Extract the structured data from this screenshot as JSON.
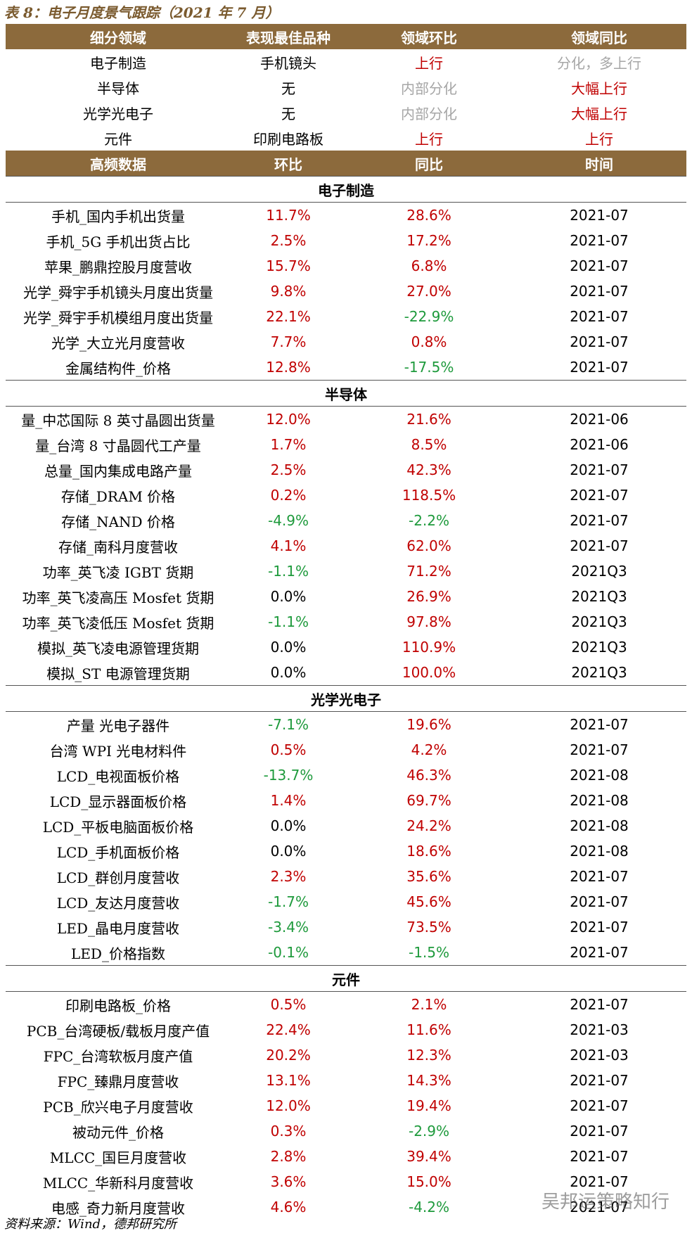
{
  "title": "表 8：电子月度景气跟踪（2021 年 7 月）",
  "summary": {
    "header": [
      "细分领域",
      "表现最佳品种",
      "领域环比",
      "领域同比"
    ],
    "rows": [
      {
        "cells": [
          "电子制造",
          "手机镜头",
          "上行",
          "分化，多上行"
        ],
        "colors": [
          "#000000",
          "#000000",
          "#c00000",
          "#a6a6a6"
        ]
      },
      {
        "cells": [
          "半导体",
          "无",
          "内部分化",
          "大幅上行"
        ],
        "colors": [
          "#000000",
          "#000000",
          "#a6a6a6",
          "#c00000"
        ]
      },
      {
        "cells": [
          "光学光电子",
          "无",
          "内部分化",
          "大幅上行"
        ],
        "colors": [
          "#000000",
          "#000000",
          "#a6a6a6",
          "#c00000"
        ]
      },
      {
        "cells": [
          "元件",
          "印刷电路板",
          "上行",
          "上行"
        ],
        "colors": [
          "#000000",
          "#000000",
          "#c00000",
          "#c00000"
        ]
      }
    ]
  },
  "detail": {
    "header": [
      "高频数据",
      "环比",
      "同比",
      "时间"
    ],
    "sections": [
      {
        "name": "电子制造",
        "rows": [
          [
            "手机_国内手机出货量",
            "11.7%",
            "28.6%",
            "2021-07"
          ],
          [
            "手机_5G 手机出货占比",
            "2.5%",
            "17.2%",
            "2021-07"
          ],
          [
            "苹果_鹏鼎控股月度营收",
            "15.7%",
            "6.8%",
            "2021-07"
          ],
          [
            "光学_舜宇手机镜头月度出货量",
            "9.8%",
            "27.0%",
            "2021-07"
          ],
          [
            "光学_舜宇手机模组月度出货量",
            "22.1%",
            "-22.9%",
            "2021-07"
          ],
          [
            "光学_大立光月度营收",
            "7.7%",
            "0.8%",
            "2021-07"
          ],
          [
            "金属结构件_价格",
            "12.8%",
            "-17.5%",
            "2021-07"
          ]
        ]
      },
      {
        "name": "半导体",
        "rows": [
          [
            "量_中芯国际 8 英寸晶圆出货量",
            "12.0%",
            "21.6%",
            "2021-06"
          ],
          [
            "量_台湾 8 寸晶圆代工产量",
            "1.7%",
            "8.5%",
            "2021-06"
          ],
          [
            "总量_国内集成电路产量",
            "2.5%",
            "42.3%",
            "2021-07"
          ],
          [
            "存储_DRAM 价格",
            "0.2%",
            "118.5%",
            "2021-07"
          ],
          [
            "存储_NAND 价格",
            "-4.9%",
            "-2.2%",
            "2021-07"
          ],
          [
            "存储_南科月度营收",
            "4.1%",
            "62.0%",
            "2021-07"
          ],
          [
            "功率_英飞凌 IGBT 货期",
            "-1.1%",
            "71.2%",
            "2021Q3"
          ],
          [
            "功率_英飞凌高压 Mosfet 货期",
            "0.0%",
            "26.9%",
            "2021Q3"
          ],
          [
            "功率_英飞凌低压 Mosfet 货期",
            "-1.1%",
            "97.8%",
            "2021Q3"
          ],
          [
            "模拟_英飞凌电源管理货期",
            "0.0%",
            "110.9%",
            "2021Q3"
          ],
          [
            "模拟_ST 电源管理货期",
            "0.0%",
            "100.0%",
            "2021Q3"
          ]
        ]
      },
      {
        "name": "光学光电子",
        "rows": [
          [
            "产量 光电子器件",
            "-7.1%",
            "19.6%",
            "2021-07"
          ],
          [
            "台湾 WPI 光电材料件",
            "0.5%",
            "4.2%",
            "2021-07"
          ],
          [
            "LCD_电视面板价格",
            "-13.7%",
            "46.3%",
            "2021-08"
          ],
          [
            "LCD_显示器面板价格",
            "1.4%",
            "69.7%",
            "2021-08"
          ],
          [
            "LCD_平板电脑面板价格",
            "0.0%",
            "24.2%",
            "2021-08"
          ],
          [
            "LCD_手机面板价格",
            "0.0%",
            "18.6%",
            "2021-08"
          ],
          [
            "LCD_群创月度营收",
            "2.3%",
            "35.6%",
            "2021-07"
          ],
          [
            "LCD_友达月度营收",
            "-1.7%",
            "45.6%",
            "2021-07"
          ],
          [
            "LED_晶电月度营收",
            "-3.4%",
            "73.5%",
            "2021-07"
          ],
          [
            "LED_价格指数",
            "-0.1%",
            "-1.5%",
            "2021-07"
          ]
        ]
      },
      {
        "name": "元件",
        "rows": [
          [
            "印刷电路板_价格",
            "0.5%",
            "2.1%",
            "2021-07"
          ],
          [
            "PCB_台湾硬板/载板月度产值",
            "22.4%",
            "11.6%",
            "2021-03"
          ],
          [
            "FPC_台湾软板月度产值",
            "20.2%",
            "12.3%",
            "2021-03"
          ],
          [
            "FPC_臻鼎月度营收",
            "13.1%",
            "14.3%",
            "2021-07"
          ],
          [
            "PCB_欣兴电子月度营收",
            "12.0%",
            "19.4%",
            "2021-07"
          ],
          [
            "被动元件_价格",
            "0.3%",
            "-2.9%",
            "2021-07"
          ],
          [
            "MLCC_国巨月度营收",
            "2.8%",
            "39.4%",
            "2021-07"
          ],
          [
            "MLCC_华新科月度营收",
            "3.6%",
            "15.0%",
            "2021-07"
          ],
          [
            "电感_奇力新月度营收",
            "4.6%",
            "-4.2%",
            "2021-07"
          ]
        ]
      }
    ]
  },
  "source": "资料来源：Wind，德邦研究所",
  "watermark": "吴邦运策略知行"
}
